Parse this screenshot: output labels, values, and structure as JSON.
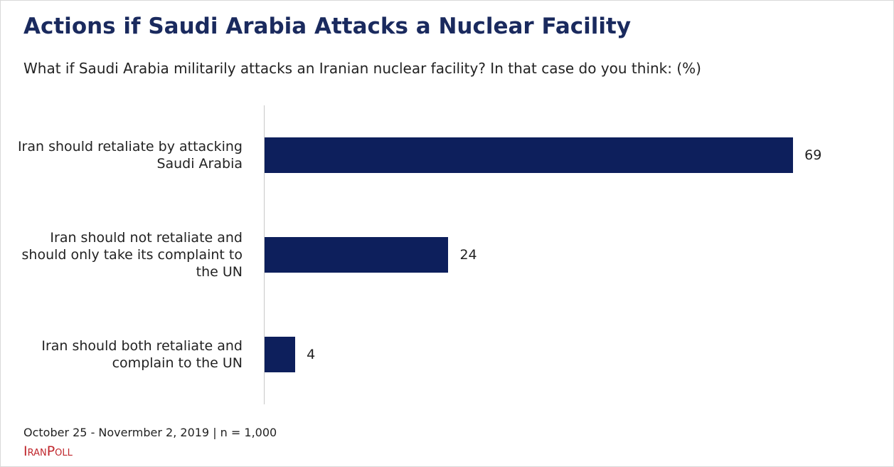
{
  "chart_data": {
    "type": "bar",
    "orientation": "horizontal",
    "title": "Actions if Saudi Arabia Attacks a Nuclear Facility",
    "subtitle": "What if Saudi Arabia militarily attacks an Iranian nuclear facility? In that case do you think: (%)",
    "categories": [
      "Iran should retaliate by attacking Saudi Arabia",
      "Iran should not retaliate and should only take its complaint to the UN",
      "Iran should both retaliate and complain to the UN"
    ],
    "values": [
      69,
      24,
      4
    ],
    "color": "#0d1f5c",
    "note": "October 25 - Novermber 2, 2019 | n = 1,000",
    "source": "IranPoll"
  }
}
